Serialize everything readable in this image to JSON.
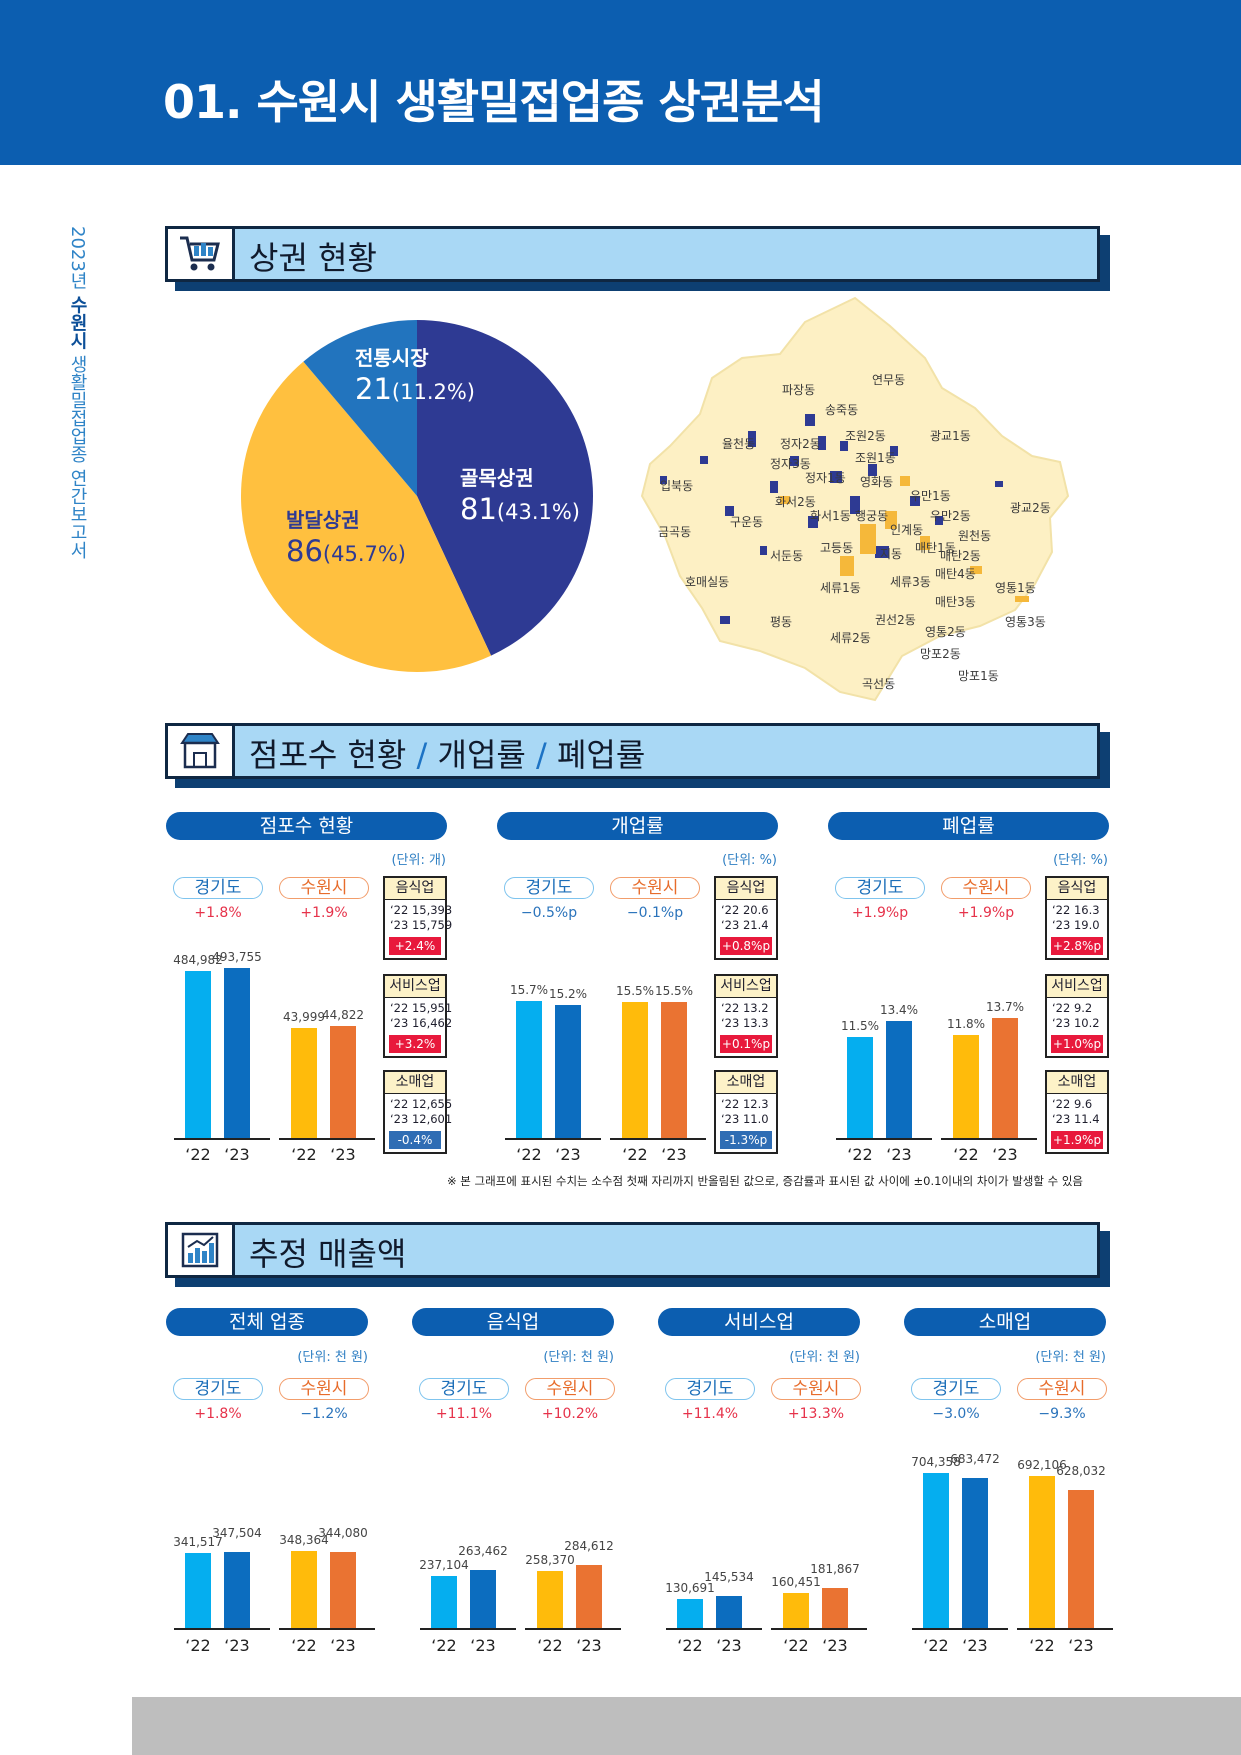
{
  "header": {
    "title": "01. 수원시 생활밀접업종 상권분석"
  },
  "side_text": {
    "year": "2023년",
    "city": "수원시",
    "rest": "생활밀접업종 연간보고서"
  },
  "sections": {
    "s1": "상권 현황",
    "s2a": "점포수 현황",
    "s2b": "개업률",
    "s2c": "폐업률",
    "s2_sep": "/",
    "s3": "추정 매출액"
  },
  "icons": {
    "s1": "shopping-cart-icon",
    "s2": "storefront-icon",
    "s3": "bar-chart-icon"
  },
  "pie": {
    "colors": {
      "golmok": "#2e3a93",
      "baldal": "#ffc03f",
      "jeontong": "#2274be"
    },
    "items": [
      {
        "name": "골목상권",
        "count": "81",
        "pct": "(43.1%)",
        "value": 81
      },
      {
        "name": "발달상권",
        "count": "86",
        "pct": "(45.7%)",
        "value": 86
      },
      {
        "name": "전통시장",
        "count": "21",
        "pct": "(11.2%)",
        "value": 21
      }
    ]
  },
  "map_labels": [
    "파장동",
    "연무동",
    "송죽동",
    "조원2동",
    "광교1동",
    "율천동",
    "정자2동",
    "조원1동",
    "정자3동",
    "정자1동",
    "영화동",
    "파장동",
    "입북동",
    "화서2동",
    "우만1동",
    "광교2동",
    "금곡동",
    "구운동",
    "화서1동",
    "행궁동",
    "인계동",
    "우만2동",
    "원천동",
    "서둔동",
    "고등동",
    "지동",
    "매탄1동",
    "매탄2동",
    "호매실동",
    "평동",
    "세류1동",
    "세류3동",
    "매탄4동",
    "영통1동",
    "매탄3동",
    "권선2동",
    "세류2동",
    "영통2동",
    "영통3동",
    "망포2동",
    "곡선동",
    "망포1동"
  ],
  "legend": {
    "gg": "경기도",
    "sw": "수원시",
    "y22": "‘22",
    "y23": "‘23"
  },
  "charts": {
    "colors": {
      "gg22": "#05aeef",
      "gg23": "#0c6dbf",
      "sw22": "#ffbb0b",
      "sw23": "#ea7332"
    },
    "store": {
      "title": "점포수 현황",
      "unit": "(단위: 개)",
      "gg_chg": "+1.8%",
      "sw_chg": "+1.9%",
      "max": 500000,
      "vals": [
        484982,
        493755,
        43999,
        44822
      ],
      "labels": [
        "484,982",
        "493,755",
        "43,999",
        "44,822"
      ],
      "scale": "split"
    },
    "open": {
      "title": "개업률",
      "unit": "(단위: %)",
      "gg_chg": "−0.5%p",
      "sw_chg": "−0.1%p",
      "max": 20,
      "vals": [
        15.7,
        15.2,
        15.5,
        15.5
      ],
      "labels": [
        "15.7%",
        "15.2%",
        "15.5%",
        "15.5%"
      ]
    },
    "close": {
      "title": "폐업률",
      "unit": "(단위: %)",
      "gg_chg": "+1.9%p",
      "sw_chg": "+1.9%p",
      "max": 20,
      "vals": [
        11.5,
        13.4,
        11.8,
        13.7
      ],
      "labels": [
        "11.5%",
        "13.4%",
        "11.8%",
        "13.7%"
      ]
    }
  },
  "boxes": {
    "store": [
      {
        "t": "음식업",
        "a": "‘22 15,393",
        "b": "‘23 15,759",
        "d": "+2.4%",
        "c": "r"
      },
      {
        "t": "서비스업",
        "a": "‘22 15,951",
        "b": "‘23 16,462",
        "d": "+3.2%",
        "c": "r"
      },
      {
        "t": "소매업",
        "a": "‘22 12,655",
        "b": "‘23 12,601",
        "d": "-0.4%",
        "c": "b"
      }
    ],
    "open": [
      {
        "t": "음식업",
        "a": "‘22 20.6",
        "b": "‘23 21.4",
        "d": "+0.8%p",
        "c": "r"
      },
      {
        "t": "서비스업",
        "a": "‘22 13.2",
        "b": "‘23 13.3",
        "d": "+0.1%p",
        "c": "r"
      },
      {
        "t": "소매업",
        "a": "‘22 12.3",
        "b": "‘23 11.0",
        "d": "-1.3%p",
        "c": "b"
      }
    ],
    "close": [
      {
        "t": "음식업",
        "a": "‘22 16.3",
        "b": "‘23 19.0",
        "d": "+2.8%p",
        "c": "r"
      },
      {
        "t": "서비스업",
        "a": "‘22   9.2",
        "b": "‘23 10.2",
        "d": "+1.0%p",
        "c": "r"
      },
      {
        "t": "소매업",
        "a": "‘22   9.6",
        "b": "‘23 11.4",
        "d": "+1.9%p",
        "c": "r"
      }
    ]
  },
  "note": "※ 본 그래프에 표시된 수치는 소수점 첫째 자리까지 반올림된 값으로, 증감률과 표시된 값 사이에 ±0.1이내의 차이가 발생할 수 있음",
  "sales": {
    "unit": "(단위: 천 원)",
    "max": 750000,
    "groups": [
      {
        "title": "전체 업종",
        "gg_chg": "+1.8%",
        "sw_chg": "−1.2%",
        "vals": [
          341517,
          347504,
          348364,
          344080
        ],
        "labels": [
          "341,517",
          "347,504",
          "348,364",
          "344,080"
        ]
      },
      {
        "title": "음식업",
        "gg_chg": "+11.1%",
        "sw_chg": "+10.2%",
        "vals": [
          237104,
          263462,
          258370,
          284612
        ],
        "labels": [
          "237,104",
          "263,462",
          "258,370",
          "284,612"
        ]
      },
      {
        "title": "서비스업",
        "gg_chg": "+11.4%",
        "sw_chg": "+13.3%",
        "vals": [
          130691,
          145534,
          160451,
          181867
        ],
        "labels": [
          "130,691",
          "145,534",
          "160,451",
          "181,867"
        ]
      },
      {
        "title": "소매업",
        "gg_chg": "−3.0%",
        "sw_chg": "−9.3%",
        "vals": [
          704358,
          683472,
          692106,
          628032
        ],
        "labels": [
          "704,358",
          "683,472",
          "692,106",
          "628,032"
        ]
      }
    ]
  }
}
